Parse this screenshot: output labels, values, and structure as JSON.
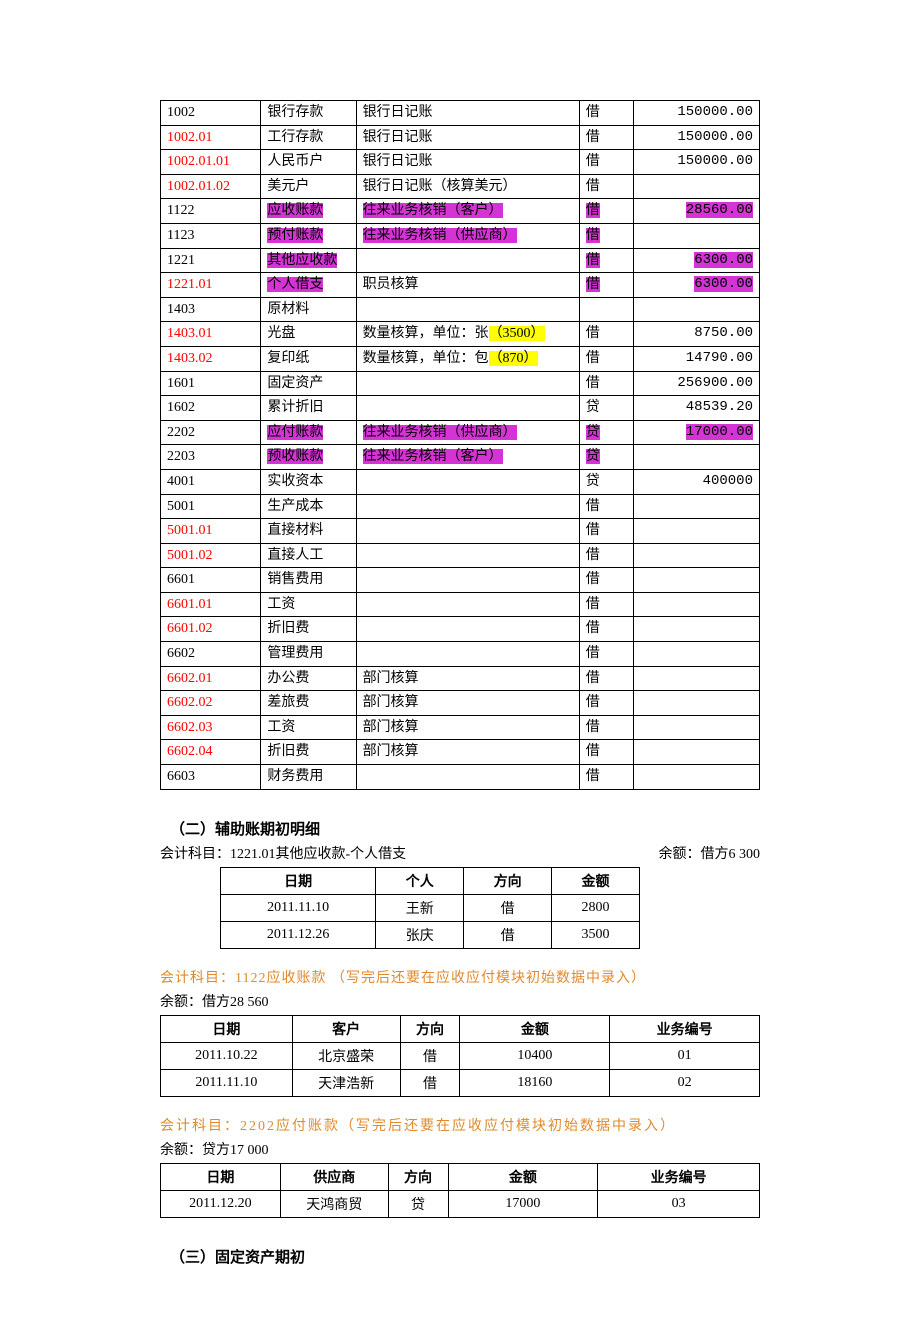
{
  "colors": {
    "background": "#ffffff",
    "text": "#000000",
    "red": "#ff0000",
    "pink_highlight": "#d633d6",
    "yellow_highlight": "#ffff00",
    "orange": "#e08a2c",
    "border": "#000000"
  },
  "typography": {
    "font_family": "SimSun",
    "base_size_pt": 10,
    "heading_weight": "bold"
  },
  "mainTable": {
    "columns": {
      "code_width": 85,
      "name_width": 80,
      "calc_width": 205,
      "dir_width": 40,
      "amt_width": 110
    },
    "rows": [
      {
        "code": "1002",
        "name": "银行存款",
        "calc": "银行日记账",
        "dir": "借",
        "amt": "150000.00"
      },
      {
        "code": "1002.01",
        "code_red": true,
        "name": "工行存款",
        "calc": "银行日记账",
        "dir": "借",
        "amt": "150000.00"
      },
      {
        "code": "1002.01.01",
        "code_red": true,
        "name": "人民币户",
        "calc": "银行日记账",
        "dir": "借",
        "amt": "150000.00"
      },
      {
        "code": "1002.01.02",
        "code_red": true,
        "name": "美元户",
        "calc": "银行日记账（核算美元）",
        "dir": "借",
        "amt": ""
      },
      {
        "code": "1122",
        "name": "应收账款",
        "name_pink": true,
        "calc": "往来业务核销（客户）",
        "calc_pink": true,
        "dir": "借",
        "dir_pink": true,
        "amt": "28560.00",
        "amt_pink": true
      },
      {
        "code": "1123",
        "name": "预付账款",
        "name_pink": true,
        "calc": "往来业务核销（供应商）",
        "calc_pink": true,
        "dir": "借",
        "dir_pink": true,
        "amt": ""
      },
      {
        "code": "1221",
        "name": "其他应收款",
        "name_pink": true,
        "calc": "",
        "dir": "借",
        "dir_pink": true,
        "amt": "6300.00",
        "amt_pink": true
      },
      {
        "code": "1221.01",
        "code_red": true,
        "name": "个人借支",
        "name_pink": true,
        "calc": "职员核算",
        "dir": "借",
        "dir_pink": true,
        "amt": "6300.00",
        "amt_pink": true
      },
      {
        "code": "1403",
        "name": "原材料",
        "calc": "",
        "dir": "",
        "amt": ""
      },
      {
        "code": "1403.01",
        "code_red": true,
        "name": "光盘",
        "calc_pre": "数量核算，单位：张",
        "calc_hl": "（3500）",
        "dir": "借",
        "amt": "8750.00"
      },
      {
        "code": "1403.02",
        "code_red": true,
        "name": "复印纸",
        "calc_pre": "数量核算，单位：包",
        "calc_hl": "（870）",
        "dir": "借",
        "amt": "14790.00"
      },
      {
        "code": "1601",
        "name": "固定资产",
        "calc": "",
        "dir": "借",
        "amt": "256900.00"
      },
      {
        "code": "1602",
        "name": "累计折旧",
        "calc": "",
        "dir": "贷",
        "amt": "48539.20"
      },
      {
        "code": "2202",
        "name": "应付账款",
        "name_pink": true,
        "calc": "往来业务核销（供应商）",
        "calc_pink": true,
        "dir": "贷",
        "dir_pink": true,
        "amt": "17000.00",
        "amt_pink": true
      },
      {
        "code": "2203",
        "name": "预收账款",
        "name_pink": true,
        "calc": "往来业务核销（客户）",
        "calc_pink": true,
        "dir": "贷",
        "dir_pink": true,
        "amt": ""
      },
      {
        "code": "4001",
        "name": "实收资本",
        "calc": "",
        "dir": "贷",
        "amt": "400000"
      },
      {
        "code": "5001",
        "name": "生产成本",
        "calc": "",
        "dir": "借",
        "amt": ""
      },
      {
        "code": "5001.01",
        "code_red": true,
        "name": "直接材料",
        "calc": "",
        "dir": "借",
        "amt": ""
      },
      {
        "code": "5001.02",
        "code_red": true,
        "name": "直接人工",
        "calc": "",
        "dir": "借",
        "amt": ""
      },
      {
        "code": "6601",
        "name": "销售费用",
        "calc": "",
        "dir": "借",
        "amt": ""
      },
      {
        "code": "6601.01",
        "code_red": true,
        "name": "工资",
        "calc": "",
        "dir": "借",
        "amt": ""
      },
      {
        "code": "6601.02",
        "code_red": true,
        "name": "折旧费",
        "calc": "",
        "dir": "借",
        "amt": ""
      },
      {
        "code": "6602",
        "name": "管理费用",
        "calc": "",
        "dir": "借",
        "amt": ""
      },
      {
        "code": "6602.01",
        "code_red": true,
        "name": "办公费",
        "calc": "部门核算",
        "dir": "借",
        "amt": ""
      },
      {
        "code": "6602.02",
        "code_red": true,
        "name": "差旅费",
        "calc": "部门核算",
        "dir": "借",
        "amt": ""
      },
      {
        "code": "6602.03",
        "code_red": true,
        "name": "工资",
        "calc": "部门核算",
        "dir": "借",
        "amt": ""
      },
      {
        "code": "6602.04",
        "code_red": true,
        "name": "折旧费",
        "calc": "部门核算",
        "dir": "借",
        "amt": ""
      },
      {
        "code": "6603",
        "name": "财务费用",
        "calc": "",
        "dir": "借",
        "amt": ""
      }
    ]
  },
  "section2": {
    "heading": "（二）辅助账期初明细",
    "line1_left": "会计科目：1221.01其他应收款-个人借支",
    "line1_right": "余额：借方6 300",
    "headers": {
      "date": "日期",
      "person": "个人",
      "dir": "方向",
      "amt": "金额"
    },
    "rows": [
      {
        "date": "2011.11.10",
        "person": "王新",
        "dir": "借",
        "amt": "2800"
      },
      {
        "date": "2011.12.26",
        "person": "张庆",
        "dir": "借",
        "amt": "3500"
      }
    ]
  },
  "section3": {
    "title": "会计科目：1122应收账款 （写完后还要在应收应付模块初始数据中录入）",
    "balance": "余额：借方28 560",
    "headers": {
      "date": "日期",
      "cust": "客户",
      "dir": "方向",
      "amt": "金额",
      "biz": "业务编号"
    },
    "rows": [
      {
        "date": "2011.10.22",
        "cust": "北京盛荣",
        "dir": "借",
        "amt": "10400",
        "biz": "01"
      },
      {
        "date": "2011.11.10",
        "cust": "天津浩新",
        "dir": "借",
        "amt": "18160",
        "biz": "02"
      }
    ]
  },
  "section4": {
    "title": "会计科目：2202应付账款（写完后还要在应收应付模块初始数据中录入）",
    "balance": "余额：贷方17 000",
    "headers": {
      "date": "日期",
      "supp": "供应商",
      "dir": "方向",
      "amt": "金额",
      "biz": "业务编号"
    },
    "rows": [
      {
        "date": "2011.12.20",
        "supp": "天鸿商贸",
        "dir": "贷",
        "amt": "17000",
        "biz": "03"
      }
    ]
  },
  "section5": {
    "heading": "（三）固定资产期初"
  }
}
